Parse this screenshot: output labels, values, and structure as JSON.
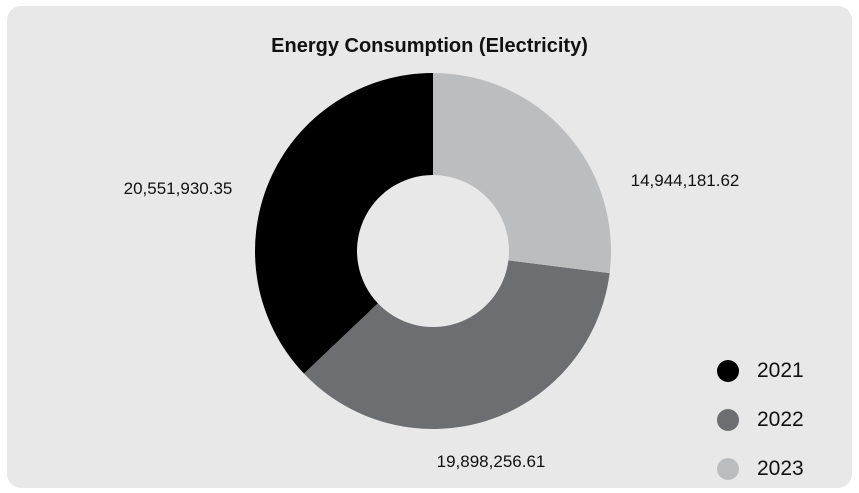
{
  "chart_data": {
    "type": "pie",
    "variant": "donut",
    "title": "Energy Consumption (Electricity)",
    "categories": [
      "2021",
      "2022",
      "2023"
    ],
    "values": [
      20551930.35,
      19898256.61,
      14944181.62
    ],
    "value_labels": [
      "20,551,930.35",
      "19,898,256.61",
      "14,944,181.62"
    ],
    "colors": [
      "#000000",
      "#6d6e71",
      "#bcbdbf"
    ],
    "legend_position": "bottom-right"
  }
}
